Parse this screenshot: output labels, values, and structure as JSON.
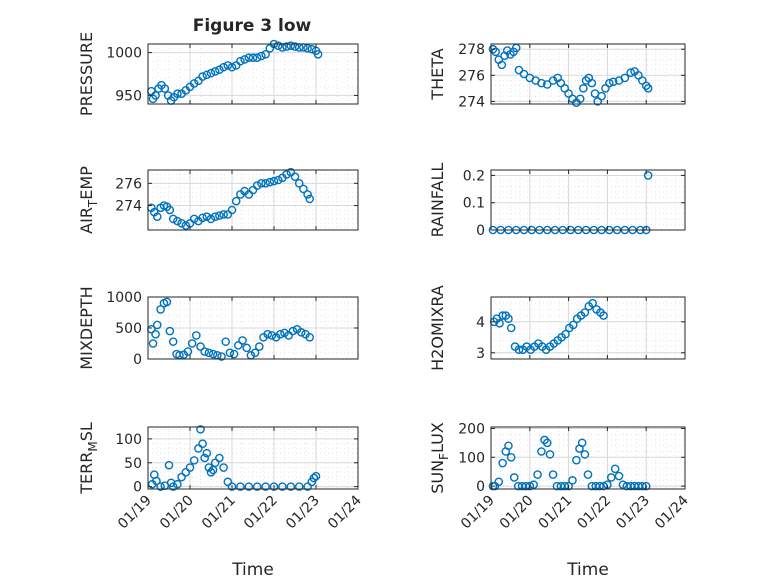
{
  "figure": {
    "title": "Figure 3 low",
    "colors": {
      "marker": "#0072BD",
      "axis": "#262626",
      "grid": "#d9d9d9",
      "background": "#ffffff"
    }
  },
  "x_axis": {
    "label": "Time",
    "ticks": [
      {
        "x": 19,
        "label": "01/19"
      },
      {
        "x": 20,
        "label": "01/20"
      },
      {
        "x": 21,
        "label": "01/21"
      },
      {
        "x": 22,
        "label": "01/22"
      },
      {
        "x": 23,
        "label": "01/23"
      },
      {
        "x": 24,
        "label": "01/24"
      }
    ]
  },
  "chart_data": [
    {
      "type": "scatter",
      "ylabel": "PRESSURE",
      "ylim": [
        940,
        1010
      ],
      "yticks": [
        950,
        1000
      ],
      "ytick_labels": [
        "950",
        "1000"
      ],
      "xlim": [
        19,
        24
      ],
      "xticks_labeled": false,
      "grid": true,
      "points": [
        [
          19.08,
          955
        ],
        [
          19.12,
          946
        ],
        [
          19.18,
          950
        ],
        [
          19.25,
          958
        ],
        [
          19.32,
          962
        ],
        [
          19.4,
          958
        ],
        [
          19.48,
          950
        ],
        [
          19.55,
          944
        ],
        [
          19.62,
          948
        ],
        [
          19.7,
          952
        ],
        [
          19.8,
          952
        ],
        [
          19.9,
          956
        ],
        [
          20.0,
          960
        ],
        [
          20.1,
          964
        ],
        [
          20.2,
          967
        ],
        [
          20.3,
          972
        ],
        [
          20.4,
          974
        ],
        [
          20.5,
          976
        ],
        [
          20.6,
          978
        ],
        [
          20.7,
          980
        ],
        [
          20.8,
          983
        ],
        [
          20.9,
          985
        ],
        [
          21.0,
          983
        ],
        [
          21.1,
          985
        ],
        [
          21.2,
          990
        ],
        [
          21.3,
          992
        ],
        [
          21.4,
          994
        ],
        [
          21.5,
          994
        ],
        [
          21.6,
          994
        ],
        [
          21.7,
          996
        ],
        [
          21.8,
          998
        ],
        [
          21.9,
          1005
        ],
        [
          22.0,
          1010
        ],
        [
          22.1,
          1008
        ],
        [
          22.2,
          1006
        ],
        [
          22.3,
          1007
        ],
        [
          22.4,
          1008
        ],
        [
          22.5,
          1007
        ],
        [
          22.6,
          1006
        ],
        [
          22.7,
          1006
        ],
        [
          22.8,
          1005
        ],
        [
          22.9,
          1004
        ],
        [
          23.0,
          1002
        ],
        [
          23.05,
          998
        ]
      ]
    },
    {
      "type": "scatter",
      "ylabel": "THETA",
      "ylim": [
        273.8,
        278.4
      ],
      "yticks": [
        274,
        276,
        278
      ],
      "ytick_labels": [
        "274",
        "276",
        "278"
      ],
      "xlim": [
        19,
        24
      ],
      "xticks_labeled": false,
      "grid": true,
      "points": [
        [
          19.05,
          278
        ],
        [
          19.12,
          277.8
        ],
        [
          19.2,
          277.2
        ],
        [
          19.28,
          276.8
        ],
        [
          19.35,
          277.5
        ],
        [
          19.42,
          277.9
        ],
        [
          19.5,
          277.6
        ],
        [
          19.58,
          277.8
        ],
        [
          19.65,
          278.1
        ],
        [
          19.72,
          276.4
        ],
        [
          19.85,
          276.1
        ],
        [
          20.0,
          275.8
        ],
        [
          20.15,
          275.6
        ],
        [
          20.3,
          275.4
        ],
        [
          20.45,
          275.3
        ],
        [
          20.6,
          275.6
        ],
        [
          20.72,
          275.8
        ],
        [
          20.8,
          275.4
        ],
        [
          20.9,
          275.0
        ],
        [
          21.0,
          274.6
        ],
        [
          21.1,
          274.2
        ],
        [
          21.2,
          273.9
        ],
        [
          21.3,
          274.2
        ],
        [
          21.38,
          275.0
        ],
        [
          21.45,
          275.6
        ],
        [
          21.52,
          275.8
        ],
        [
          21.6,
          275.4
        ],
        [
          21.68,
          274.6
        ],
        [
          21.75,
          274.0
        ],
        [
          21.85,
          274.4
        ],
        [
          21.95,
          275.0
        ],
        [
          22.05,
          275.4
        ],
        [
          22.15,
          275.5
        ],
        [
          22.3,
          275.6
        ],
        [
          22.45,
          275.8
        ],
        [
          22.6,
          276.2
        ],
        [
          22.7,
          276.3
        ],
        [
          22.8,
          276.0
        ],
        [
          22.9,
          275.6
        ],
        [
          23.0,
          275.2
        ],
        [
          23.05,
          275.0
        ]
      ]
    },
    {
      "type": "scatter",
      "ylabel": "AIR_TEMP",
      "ylabel_subscript": "T",
      "ylim": [
        271.8,
        277.2
      ],
      "yticks": [
        274,
        276
      ],
      "ytick_labels": [
        "274",
        "276"
      ],
      "xlim": [
        19,
        24
      ],
      "xticks_labeled": false,
      "grid": true,
      "points": [
        [
          19.08,
          273.8
        ],
        [
          19.15,
          273.4
        ],
        [
          19.22,
          273.0
        ],
        [
          19.3,
          273.8
        ],
        [
          19.38,
          274.0
        ],
        [
          19.45,
          273.9
        ],
        [
          19.52,
          273.6
        ],
        [
          19.6,
          272.8
        ],
        [
          19.7,
          272.6
        ],
        [
          19.8,
          272.4
        ],
        [
          19.9,
          272.2
        ],
        [
          20.0,
          272.4
        ],
        [
          20.1,
          272.8
        ],
        [
          20.2,
          272.6
        ],
        [
          20.3,
          272.9
        ],
        [
          20.4,
          273.0
        ],
        [
          20.5,
          272.8
        ],
        [
          20.6,
          273.0
        ],
        [
          20.7,
          273.1
        ],
        [
          20.8,
          273.2
        ],
        [
          20.9,
          273.2
        ],
        [
          21.0,
          273.6
        ],
        [
          21.1,
          274.4
        ],
        [
          21.2,
          275.0
        ],
        [
          21.3,
          275.3
        ],
        [
          21.4,
          275.0
        ],
        [
          21.5,
          275.4
        ],
        [
          21.6,
          275.8
        ],
        [
          21.7,
          276.0
        ],
        [
          21.8,
          276.0
        ],
        [
          21.9,
          276.1
        ],
        [
          22.0,
          276.2
        ],
        [
          22.1,
          276.3
        ],
        [
          22.2,
          276.5
        ],
        [
          22.3,
          276.8
        ],
        [
          22.4,
          277.0
        ],
        [
          22.5,
          276.6
        ],
        [
          22.6,
          276.0
        ],
        [
          22.7,
          275.5
        ],
        [
          22.8,
          275.0
        ],
        [
          22.85,
          274.6
        ]
      ]
    },
    {
      "type": "scatter",
      "ylabel": "RAINFALL",
      "ylim": [
        0,
        0.22
      ],
      "yticks": [
        0,
        0.1,
        0.2
      ],
      "ytick_labels": [
        "0",
        "0.1",
        "0.2"
      ],
      "xlim": [
        19,
        24
      ],
      "xticks_labeled": false,
      "grid": true,
      "points": [
        [
          19.05,
          0
        ],
        [
          19.25,
          0
        ],
        [
          19.45,
          0
        ],
        [
          19.65,
          0
        ],
        [
          19.85,
          0
        ],
        [
          20.05,
          0
        ],
        [
          20.25,
          0
        ],
        [
          20.45,
          0
        ],
        [
          20.65,
          0
        ],
        [
          20.85,
          0
        ],
        [
          21.05,
          0
        ],
        [
          21.25,
          0
        ],
        [
          21.45,
          0
        ],
        [
          21.65,
          0
        ],
        [
          21.85,
          0
        ],
        [
          22.05,
          0
        ],
        [
          22.25,
          0
        ],
        [
          22.45,
          0
        ],
        [
          22.65,
          0
        ],
        [
          22.85,
          0
        ],
        [
          23.0,
          0
        ],
        [
          23.05,
          0.2
        ]
      ]
    },
    {
      "type": "scatter",
      "ylabel": "MIXDEPTH",
      "ylim": [
        0,
        1000
      ],
      "yticks": [
        0,
        500,
        1000
      ],
      "ytick_labels": [
        "0",
        "500",
        "1000"
      ],
      "xlim": [
        19,
        24
      ],
      "xticks_labeled": false,
      "grid": true,
      "points": [
        [
          19.08,
          480
        ],
        [
          19.12,
          250
        ],
        [
          19.18,
          400
        ],
        [
          19.22,
          550
        ],
        [
          19.3,
          800
        ],
        [
          19.38,
          900
        ],
        [
          19.45,
          920
        ],
        [
          19.52,
          450
        ],
        [
          19.6,
          280
        ],
        [
          19.68,
          80
        ],
        [
          19.75,
          60
        ],
        [
          19.85,
          70
        ],
        [
          19.95,
          120
        ],
        [
          20.05,
          250
        ],
        [
          20.15,
          380
        ],
        [
          20.25,
          200
        ],
        [
          20.35,
          120
        ],
        [
          20.45,
          100
        ],
        [
          20.55,
          80
        ],
        [
          20.65,
          60
        ],
        [
          20.75,
          40
        ],
        [
          20.85,
          280
        ],
        [
          20.95,
          100
        ],
        [
          21.05,
          80
        ],
        [
          21.15,
          220
        ],
        [
          21.25,
          300
        ],
        [
          21.35,
          180
        ],
        [
          21.45,
          60
        ],
        [
          21.55,
          100
        ],
        [
          21.65,
          200
        ],
        [
          21.75,
          350
        ],
        [
          21.85,
          400
        ],
        [
          21.95,
          380
        ],
        [
          22.05,
          350
        ],
        [
          22.15,
          400
        ],
        [
          22.25,
          420
        ],
        [
          22.35,
          380
        ],
        [
          22.45,
          450
        ],
        [
          22.55,
          480
        ],
        [
          22.65,
          430
        ],
        [
          22.75,
          400
        ],
        [
          22.85,
          350
        ]
      ]
    },
    {
      "type": "scatter",
      "ylabel": "H2OMIXRA",
      "ylim": [
        2.8,
        4.8
      ],
      "yticks": [
        3,
        4
      ],
      "ytick_labels": [
        "3",
        "4"
      ],
      "xlim": [
        19,
        24
      ],
      "xticks_labeled": false,
      "grid": true,
      "points": [
        [
          19.08,
          4.0
        ],
        [
          19.15,
          4.1
        ],
        [
          19.22,
          3.95
        ],
        [
          19.3,
          4.2
        ],
        [
          19.38,
          4.2
        ],
        [
          19.45,
          4.1
        ],
        [
          19.52,
          3.8
        ],
        [
          19.62,
          3.2
        ],
        [
          19.72,
          3.1
        ],
        [
          19.82,
          3.1
        ],
        [
          19.92,
          3.2
        ],
        [
          20.02,
          3.1
        ],
        [
          20.12,
          3.2
        ],
        [
          20.22,
          3.3
        ],
        [
          20.32,
          3.2
        ],
        [
          20.42,
          3.1
        ],
        [
          20.52,
          3.2
        ],
        [
          20.62,
          3.3
        ],
        [
          20.72,
          3.4
        ],
        [
          20.82,
          3.5
        ],
        [
          20.92,
          3.6
        ],
        [
          21.02,
          3.8
        ],
        [
          21.12,
          3.9
        ],
        [
          21.22,
          4.1
        ],
        [
          21.32,
          4.2
        ],
        [
          21.42,
          4.3
        ],
        [
          21.52,
          4.5
        ],
        [
          21.62,
          4.6
        ],
        [
          21.72,
          4.4
        ],
        [
          21.82,
          4.3
        ],
        [
          21.9,
          4.2
        ]
      ]
    },
    {
      "type": "scatter",
      "ylabel": "TERR_MSL",
      "ylabel_subscript": "M",
      "ylim": [
        -5,
        125
      ],
      "yticks": [
        0,
        50,
        100
      ],
      "ytick_labels": [
        "0",
        "50",
        "100"
      ],
      "xlim": [
        19,
        24
      ],
      "xticks_labeled": true,
      "grid": true,
      "points": [
        [
          19.1,
          5
        ],
        [
          19.15,
          25
        ],
        [
          19.2,
          12
        ],
        [
          19.3,
          0
        ],
        [
          19.4,
          2
        ],
        [
          19.5,
          45
        ],
        [
          19.55,
          8
        ],
        [
          19.6,
          0
        ],
        [
          19.7,
          5
        ],
        [
          19.8,
          20
        ],
        [
          19.9,
          30
        ],
        [
          20.0,
          40
        ],
        [
          20.1,
          55
        ],
        [
          20.2,
          80
        ],
        [
          20.25,
          120
        ],
        [
          20.3,
          90
        ],
        [
          20.35,
          60
        ],
        [
          20.4,
          70
        ],
        [
          20.45,
          40
        ],
        [
          20.5,
          30
        ],
        [
          20.55,
          35
        ],
        [
          20.6,
          50
        ],
        [
          20.7,
          60
        ],
        [
          20.8,
          40
        ],
        [
          20.9,
          10
        ],
        [
          21.0,
          0
        ],
        [
          21.2,
          0
        ],
        [
          21.4,
          0
        ],
        [
          21.6,
          0
        ],
        [
          21.8,
          0
        ],
        [
          22.0,
          0
        ],
        [
          22.2,
          0
        ],
        [
          22.4,
          0
        ],
        [
          22.6,
          0
        ],
        [
          22.8,
          0
        ],
        [
          22.9,
          10
        ],
        [
          22.95,
          18
        ],
        [
          23.0,
          22
        ]
      ]
    },
    {
      "type": "scatter",
      "ylabel": "SUN_FLUX",
      "ylabel_subscript": "F",
      "ylim": [
        -10,
        205
      ],
      "yticks": [
        0,
        100,
        200
      ],
      "ytick_labels": [
        "0",
        "100",
        "200"
      ],
      "xlim": [
        19,
        24
      ],
      "xticks_labeled": true,
      "grid": true,
      "points": [
        [
          19.05,
          0
        ],
        [
          19.1,
          0
        ],
        [
          19.2,
          15
        ],
        [
          19.3,
          80
        ],
        [
          19.38,
          120
        ],
        [
          19.45,
          140
        ],
        [
          19.52,
          100
        ],
        [
          19.6,
          30
        ],
        [
          19.7,
          0
        ],
        [
          19.8,
          0
        ],
        [
          19.9,
          0
        ],
        [
          20.0,
          0
        ],
        [
          20.1,
          5
        ],
        [
          20.2,
          40
        ],
        [
          20.3,
          120
        ],
        [
          20.38,
          160
        ],
        [
          20.45,
          150
        ],
        [
          20.52,
          110
        ],
        [
          20.6,
          40
        ],
        [
          20.7,
          0
        ],
        [
          20.8,
          0
        ],
        [
          20.9,
          0
        ],
        [
          21.0,
          0
        ],
        [
          21.1,
          20
        ],
        [
          21.2,
          90
        ],
        [
          21.28,
          130
        ],
        [
          21.35,
          150
        ],
        [
          21.42,
          110
        ],
        [
          21.5,
          40
        ],
        [
          21.6,
          0
        ],
        [
          21.7,
          0
        ],
        [
          21.8,
          0
        ],
        [
          21.9,
          0
        ],
        [
          22.0,
          5
        ],
        [
          22.1,
          30
        ],
        [
          22.2,
          60
        ],
        [
          22.3,
          35
        ],
        [
          22.4,
          5
        ],
        [
          22.5,
          0
        ],
        [
          22.6,
          0
        ],
        [
          22.7,
          0
        ],
        [
          22.8,
          0
        ],
        [
          22.9,
          0
        ],
        [
          23.0,
          0
        ]
      ]
    }
  ]
}
